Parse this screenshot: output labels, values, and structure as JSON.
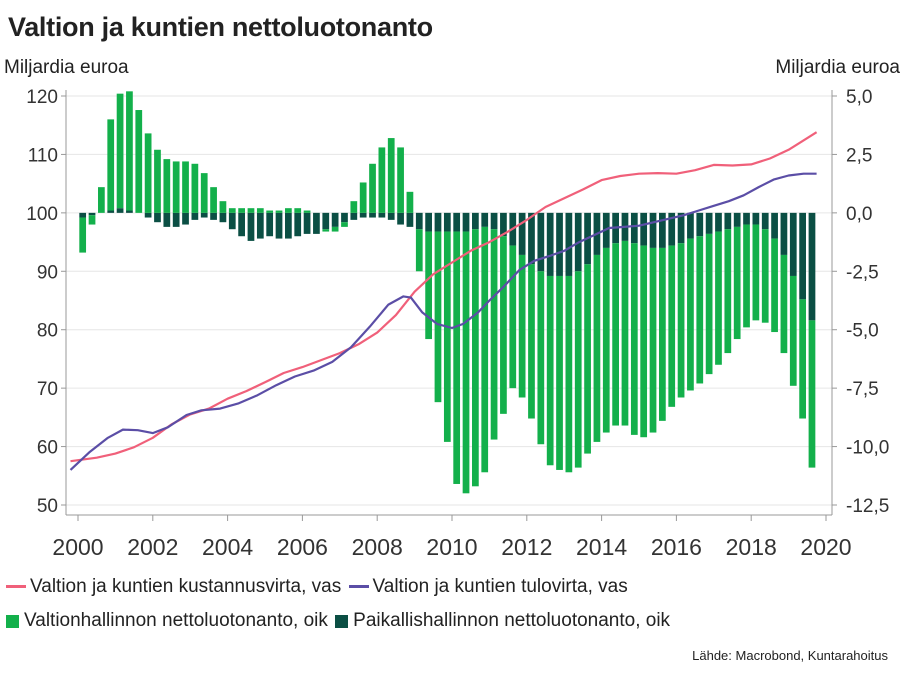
{
  "title": "Valtion ja kuntien nettoluotonanto",
  "left_unit": "Miljardia euroa",
  "right_unit": "Miljardia euroa",
  "source": "Lähde: Macrobond, Kuntarahoitus",
  "colors": {
    "cost_line": "#f0607a",
    "revenue_line": "#5b4ea6",
    "central_gov_bar": "#13b04b",
    "local_gov_bar": "#0b4f44",
    "axis": "#999999",
    "grid": "#e6e6e6"
  },
  "legend": [
    {
      "label": "Valtion ja kuntien kustannusvirta, vas",
      "kind": "line",
      "color": "#f0607a"
    },
    {
      "label": "Valtion ja kuntien tulovirta, vas",
      "kind": "line",
      "color": "#5b4ea6"
    },
    {
      "label": "Valtionhallinnon nettoluotonanto, oik",
      "kind": "bar",
      "color": "#13b04b"
    },
    {
      "label": "Paikallishallinnon nettoluotonanto, oik",
      "kind": "bar",
      "color": "#0b4f44"
    }
  ],
  "chart_data": {
    "type": "bar",
    "x_ticks": [
      "2000",
      "2002",
      "2004",
      "2006",
      "2008",
      "2010",
      "2012",
      "2014",
      "2016",
      "2018",
      "2020"
    ],
    "xlim": [
      2000,
      2020
    ],
    "left_axis": {
      "label": "Miljardia euroa",
      "ylim": [
        50,
        120
      ],
      "ticks": [
        "50",
        "60",
        "70",
        "80",
        "90",
        "100",
        "110",
        "120"
      ]
    },
    "right_axis": {
      "label": "Miljardia euroa",
      "ylim": [
        -12.5,
        5.0
      ],
      "ticks": [
        "-12,5",
        "-10,0",
        "-7,5",
        "-5,0",
        "-2,5",
        "0,0",
        "2,5",
        "5,0"
      ]
    },
    "bar_quarters": [
      2000.0,
      2000.25,
      2000.5,
      2000.75,
      2001.0,
      2001.25,
      2001.5,
      2001.75,
      2002.0,
      2002.25,
      2002.5,
      2002.75,
      2003.0,
      2003.25,
      2003.5,
      2003.75,
      2004.0,
      2004.25,
      2004.5,
      2004.75,
      2005.0,
      2005.25,
      2005.5,
      2005.75,
      2006.0,
      2006.25,
      2006.5,
      2006.75,
      2007.0,
      2007.25,
      2007.5,
      2007.75,
      2008.0,
      2008.25,
      2008.5,
      2008.75,
      2009.0,
      2009.25,
      2009.5,
      2009.75,
      2010.0,
      2010.25,
      2010.5,
      2010.75,
      2011.0,
      2011.25,
      2011.5,
      2011.75,
      2012.0,
      2012.25,
      2012.5,
      2012.75,
      2013.0,
      2013.25,
      2013.5,
      2013.75,
      2014.0,
      2014.25,
      2014.5,
      2014.75,
      2015.0,
      2015.25,
      2015.5,
      2015.75,
      2016.0,
      2016.25,
      2016.5,
      2016.75,
      2017.0,
      2017.25,
      2017.5,
      2017.75,
      2018.0,
      2018.25,
      2018.5,
      2018.75,
      2019.0,
      2019.25,
      2019.5
    ],
    "series": [
      {
        "name": "Valtionhallinnon nettoluotonanto, oik",
        "axis": "right",
        "type": "bar",
        "values": [
          -1.5,
          -0.4,
          1.1,
          3.9,
          4.9,
          5.1,
          4.4,
          3.4,
          2.7,
          2.3,
          2.2,
          2.2,
          2.1,
          1.7,
          1.1,
          0.5,
          0.2,
          0.2,
          0.2,
          0.2,
          0.1,
          0.1,
          0.2,
          0.2,
          0.1,
          0.0,
          -0.1,
          -0.2,
          -0.2,
          0.5,
          1.3,
          2.1,
          2.8,
          3.2,
          2.8,
          0.9,
          -1.8,
          -4.6,
          -7.3,
          -9.0,
          -10.8,
          -11.2,
          -11.0,
          -10.5,
          -9.0,
          -7.6,
          -6.1,
          -6.1,
          -6.6,
          -7.4,
          -8.1,
          -8.3,
          -8.4,
          -8.4,
          -8.1,
          -8.0,
          -7.9,
          -7.8,
          -7.9,
          -8.2,
          -8.2,
          -7.9,
          -7.4,
          -6.9,
          -6.6,
          -6.5,
          -6.3,
          -6.0,
          -5.7,
          -5.3,
          -4.8,
          -4.4,
          -4.1,
          -4.0,
          -4.0,
          -4.2,
          -4.7,
          -5.1,
          -6.3
        ]
      },
      {
        "name": "Paikallishallinnon nettoluotonanto, oik",
        "axis": "right",
        "type": "bar",
        "values": [
          -0.2,
          -0.1,
          0.0,
          0.1,
          0.2,
          0.1,
          0.0,
          -0.2,
          -0.4,
          -0.6,
          -0.6,
          -0.5,
          -0.3,
          -0.2,
          -0.3,
          -0.4,
          -0.7,
          -1.0,
          -1.2,
          -1.1,
          -1.0,
          -1.1,
          -1.1,
          -1.0,
          -0.9,
          -0.9,
          -0.7,
          -0.6,
          -0.4,
          -0.3,
          -0.2,
          -0.2,
          -0.2,
          -0.3,
          -0.5,
          -0.6,
          -0.7,
          -0.8,
          -0.8,
          -0.8,
          -0.8,
          -0.8,
          -0.7,
          -0.6,
          -0.7,
          -1.0,
          -1.4,
          -1.8,
          -2.2,
          -2.5,
          -2.7,
          -2.7,
          -2.7,
          -2.5,
          -2.2,
          -1.8,
          -1.5,
          -1.3,
          -1.2,
          -1.3,
          -1.4,
          -1.5,
          -1.5,
          -1.4,
          -1.3,
          -1.1,
          -1.0,
          -0.9,
          -0.8,
          -0.7,
          -0.6,
          -0.5,
          -0.5,
          -0.7,
          -1.1,
          -1.8,
          -2.7,
          -3.7,
          -4.6
        ]
      },
      {
        "name": "Valtion ja kuntien kustannusvirta, vas",
        "axis": "left",
        "type": "line",
        "x": [
          1999.8,
          2000.5,
          2001.0,
          2001.5,
          2002.0,
          2002.5,
          2003.0,
          2003.5,
          2004.0,
          2004.5,
          2005.0,
          2005.5,
          2006.0,
          2006.5,
          2007.0,
          2007.5,
          2008.0,
          2008.5,
          2009.0,
          2009.5,
          2010.0,
          2010.5,
          2011.0,
          2011.5,
          2012.0,
          2012.5,
          2013.0,
          2013.5,
          2014.0,
          2014.5,
          2015.0,
          2015.5,
          2016.0,
          2016.5,
          2017.0,
          2017.5,
          2018.0,
          2018.5,
          2019.0,
          2019.5,
          2019.75
        ],
        "values": [
          57.5,
          58.1,
          58.8,
          59.9,
          61.5,
          63.8,
          65.5,
          66.5,
          68.2,
          69.5,
          71.0,
          72.6,
          73.6,
          74.8,
          76.0,
          77.5,
          79.5,
          82.5,
          86.5,
          89.5,
          91.5,
          93.5,
          95.0,
          96.8,
          98.8,
          101.0,
          102.5,
          104.0,
          105.6,
          106.3,
          106.7,
          106.8,
          106.7,
          107.3,
          108.2,
          108.1,
          108.3,
          109.3,
          110.8,
          112.8,
          113.8
        ]
      },
      {
        "name": "Valtion ja kuntien tulovirta, vas",
        "axis": "left",
        "type": "line",
        "x": [
          1999.8,
          2000.3,
          2000.8,
          2001.2,
          2001.6,
          2002.0,
          2002.4,
          2002.9,
          2003.3,
          2003.8,
          2004.3,
          2004.8,
          2005.3,
          2005.8,
          2006.3,
          2006.8,
          2007.3,
          2007.8,
          2008.3,
          2008.7,
          2008.9,
          2009.2,
          2009.6,
          2010.0,
          2010.3,
          2010.7,
          2011.0,
          2011.4,
          2011.8,
          2012.2,
          2012.6,
          2013.0,
          2013.4,
          2013.8,
          2014.2,
          2014.6,
          2015.0,
          2015.4,
          2015.8,
          2016.2,
          2016.6,
          2017.0,
          2017.4,
          2017.8,
          2018.2,
          2018.6,
          2019.0,
          2019.4,
          2019.75
        ],
        "values": [
          56.0,
          59.0,
          61.5,
          62.9,
          62.8,
          62.3,
          63.3,
          65.4,
          66.2,
          66.5,
          67.4,
          68.8,
          70.5,
          72.0,
          73.0,
          74.5,
          77.0,
          80.5,
          84.3,
          85.7,
          85.5,
          83.0,
          81.0,
          80.3,
          81.0,
          83.0,
          85.0,
          87.5,
          90.2,
          91.8,
          92.6,
          93.5,
          95.0,
          96.2,
          97.4,
          97.6,
          97.8,
          98.4,
          99.0,
          99.6,
          100.4,
          101.2,
          102.0,
          103.0,
          104.4,
          105.7,
          106.4,
          106.7,
          106.7
        ]
      }
    ]
  }
}
